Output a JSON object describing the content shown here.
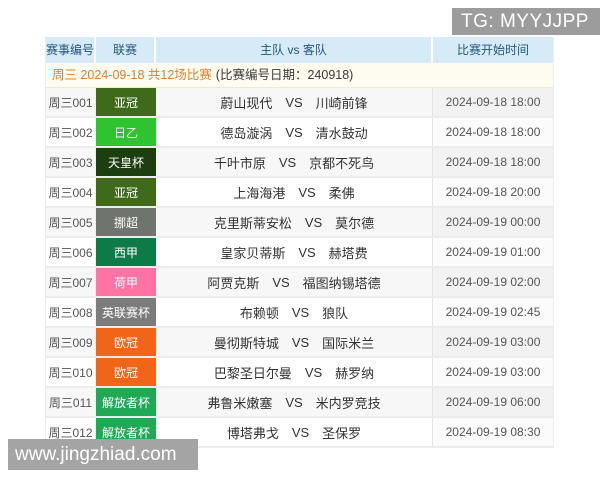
{
  "overlays": {
    "tg_banner": "TG: MYYJJPP",
    "watermark": "www.jingzhiad.com"
  },
  "colors": {
    "header_bg": "#d7eaf7",
    "header_text": "#24557e",
    "subheader_highlight": "#e0812f",
    "banner_bg": "#9c9c9c",
    "watermark_bg": "#a4a4a4"
  },
  "table": {
    "headers": [
      "赛事编号",
      "联赛",
      "主队 vs 客队",
      "比赛开始时间"
    ],
    "subheader": {
      "highlight": "周三 2024-09-18 共12场比赛",
      "rest": "(比赛编号日期：240918)"
    },
    "vs_label": "VS",
    "rows": [
      {
        "id": "周三001",
        "league": "亚冠",
        "league_color": "#3e6a1a",
        "home": "蔚山现代",
        "away": "川崎前锋",
        "time": "2024-09-18 18:00"
      },
      {
        "id": "周三002",
        "league": "日乙",
        "league_color": "#2fc42f",
        "home": "德岛漩涡",
        "away": "清水鼓动",
        "time": "2024-09-18 18:00"
      },
      {
        "id": "周三003",
        "league": "天皇杯",
        "league_color": "#1d3e10",
        "home": "千叶市原",
        "away": "京都不死鸟",
        "time": "2024-09-18 18:00"
      },
      {
        "id": "周三004",
        "league": "亚冠",
        "league_color": "#3e6a1a",
        "home": "上海海港",
        "away": "柔佛",
        "time": "2024-09-18 20:00"
      },
      {
        "id": "周三005",
        "league": "挪超",
        "league_color": "#70746e",
        "home": "克里斯蒂安松",
        "away": "莫尔德",
        "time": "2024-09-19 00:00"
      },
      {
        "id": "周三006",
        "league": "西甲",
        "league_color": "#0d7a47",
        "home": "皇家贝蒂斯",
        "away": "赫塔费",
        "time": "2024-09-19 01:00"
      },
      {
        "id": "周三007",
        "league": "荷甲",
        "league_color": "#ff72a4",
        "home": "阿贾克斯",
        "away": "福图纳锡塔德",
        "time": "2024-09-19 02:00"
      },
      {
        "id": "周三008",
        "league": "英联赛杯",
        "league_color": "#7b7b7b",
        "home": "布赖顿",
        "away": "狼队",
        "time": "2024-09-19 02:45"
      },
      {
        "id": "周三009",
        "league": "欧冠",
        "league_color": "#f06517",
        "home": "曼彻斯特城",
        "away": "国际米兰",
        "time": "2024-09-19 03:00"
      },
      {
        "id": "周三010",
        "league": "欧冠",
        "league_color": "#f06517",
        "home": "巴黎圣日尔曼",
        "away": "赫罗纳",
        "time": "2024-09-19 03:00"
      },
      {
        "id": "周三011",
        "league": "解放者杯",
        "league_color": "#1fa957",
        "home": "弗鲁米嫩塞",
        "away": "米内罗竞技",
        "time": "2024-09-19 06:00"
      },
      {
        "id": "周三012",
        "league": "解放者杯",
        "league_color": "#1fa957",
        "home": "博塔弗戈",
        "away": "圣保罗",
        "time": "2024-09-19 08:30"
      }
    ]
  }
}
